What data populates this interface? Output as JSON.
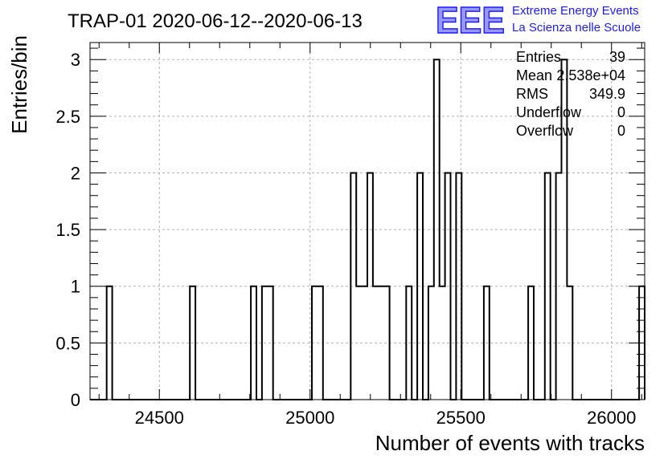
{
  "chart_data": {
    "type": "histogram",
    "title": "TRAP-01 2020-06-12--2020-06-13",
    "xlabel": "Number of events with tracks",
    "ylabel": "Entries/bin",
    "xlim": [
      24270,
      26110
    ],
    "ylim": [
      0,
      3.15
    ],
    "grid": true,
    "xticks": [
      24500,
      25000,
      25500,
      26000
    ],
    "xtick_labels": [
      "24500",
      "25000",
      "25500",
      "26000"
    ],
    "yticks": [
      0,
      0.5,
      1,
      1.5,
      2,
      2.5,
      3
    ],
    "ytick_labels": [
      "0",
      "0.5",
      "1",
      "1.5",
      "2",
      "2.5",
      "3"
    ],
    "bin_width": 18.4,
    "bin_edges": [
      24270.0,
      24288.4,
      24306.8,
      24325.2,
      24343.6,
      24362.0,
      24380.4,
      24398.8,
      24417.2,
      24435.6,
      24454.0,
      24472.4,
      24490.8,
      24509.2,
      24527.6,
      24546.0,
      24564.4,
      24582.8,
      24601.2,
      24619.6,
      24638.0,
      24656.4,
      24674.8,
      24693.2,
      24711.6,
      24730.0,
      24748.4,
      24766.8,
      24785.2,
      24803.6,
      24822.0,
      24840.4,
      24858.8,
      24877.2,
      24895.6,
      24914.0,
      24932.4,
      24950.8,
      24969.2,
      24987.6,
      25006.0,
      25024.4,
      25042.8,
      25061.2,
      25079.6,
      25098.0,
      25116.4,
      25134.8,
      25153.2,
      25171.6,
      25190.0,
      25208.4,
      25226.8,
      25245.2,
      25263.6,
      25282.0,
      25300.4,
      25318.8,
      25337.2,
      25355.6,
      25374.0,
      25392.4,
      25410.8,
      25429.2,
      25447.6,
      25466.0,
      25484.4,
      25502.8,
      25521.2,
      25539.6,
      25558.0,
      25576.4,
      25594.8,
      25613.2,
      25631.6,
      25650.0,
      25668.4,
      25686.8,
      25705.2,
      25723.6,
      25742.0,
      25760.4,
      25778.8,
      25797.2,
      25815.6,
      25834.0,
      25852.4,
      25870.8,
      25889.2,
      25907.6,
      25926.0,
      25944.4,
      25962.8,
      25981.2,
      25999.6,
      26018.0,
      26036.4,
      26054.8,
      26073.2,
      26091.6,
      26110.0
    ],
    "counts": [
      0,
      0,
      0,
      1,
      0,
      0,
      0,
      0,
      0,
      0,
      0,
      0,
      0,
      0,
      0,
      0,
      0,
      0,
      1,
      0,
      0,
      0,
      0,
      0,
      0,
      0,
      0,
      0,
      0,
      1,
      0,
      1,
      1,
      0,
      0,
      0,
      0,
      0,
      0,
      0,
      1,
      1,
      0,
      0,
      0,
      0,
      0,
      2,
      1,
      1,
      2,
      1,
      1,
      1,
      0,
      0,
      0,
      1,
      0,
      2,
      0,
      1,
      3,
      1,
      2,
      0,
      2,
      0,
      0,
      0,
      0,
      1,
      0,
      0,
      0,
      0,
      0,
      0,
      0,
      1,
      0,
      0,
      2,
      0,
      2,
      3,
      1,
      0,
      0,
      0,
      0,
      0,
      0,
      0,
      0,
      0,
      0,
      0,
      0,
      1
    ]
  },
  "stats": {
    "rows": [
      {
        "label": "Entries",
        "value": "39"
      },
      {
        "label": "Mean",
        "value": "2.538e+04"
      },
      {
        "label": "RMS",
        "value": "349.9"
      },
      {
        "label": "Underflow",
        "value": "0"
      },
      {
        "label": "Overflow",
        "value": "0"
      }
    ]
  },
  "logo": {
    "mark": "EEE",
    "line1": "Extreme Energy Events",
    "line2": "La Scienza nelle Scuole",
    "color": "#1a1aff"
  },
  "colors": {
    "histogram_line": "#000000",
    "grid": "#b0b0b0",
    "background": "#ffffff"
  }
}
